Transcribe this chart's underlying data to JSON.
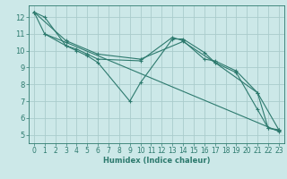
{
  "title": "",
  "xlabel": "Humidex (Indice chaleur)",
  "background_color": "#cce8e8",
  "grid_color": "#aacccc",
  "line_color": "#2d7a6e",
  "xlim": [
    -0.5,
    23.5
  ],
  "ylim": [
    4.5,
    12.7
  ],
  "yticks": [
    5,
    6,
    7,
    8,
    9,
    10,
    11,
    12
  ],
  "xticks": [
    0,
    1,
    2,
    3,
    4,
    5,
    6,
    7,
    8,
    9,
    10,
    11,
    12,
    13,
    14,
    15,
    16,
    17,
    18,
    19,
    20,
    21,
    22,
    23
  ],
  "lines": [
    {
      "x": [
        0,
        1,
        3,
        4,
        5,
        6,
        9,
        10,
        13,
        14,
        16,
        17,
        19,
        21,
        22,
        23
      ],
      "y": [
        12.3,
        12.0,
        10.3,
        10.0,
        9.7,
        9.3,
        7.0,
        8.1,
        10.7,
        10.7,
        9.9,
        9.3,
        8.7,
        6.5,
        5.4,
        5.3
      ]
    },
    {
      "x": [
        1,
        3,
        4,
        5,
        6,
        10,
        13,
        14,
        16,
        17,
        19,
        21,
        22,
        23
      ],
      "y": [
        11.0,
        10.3,
        10.1,
        9.8,
        9.5,
        9.4,
        10.8,
        10.6,
        9.5,
        9.4,
        8.8,
        7.5,
        5.4,
        5.25
      ]
    },
    {
      "x": [
        0,
        1,
        3,
        23
      ],
      "y": [
        12.3,
        11.0,
        10.5,
        5.2
      ]
    },
    {
      "x": [
        0,
        3,
        6,
        10,
        14,
        17,
        21,
        23
      ],
      "y": [
        12.3,
        10.6,
        9.8,
        9.5,
        10.55,
        9.3,
        7.5,
        5.3
      ]
    }
  ]
}
